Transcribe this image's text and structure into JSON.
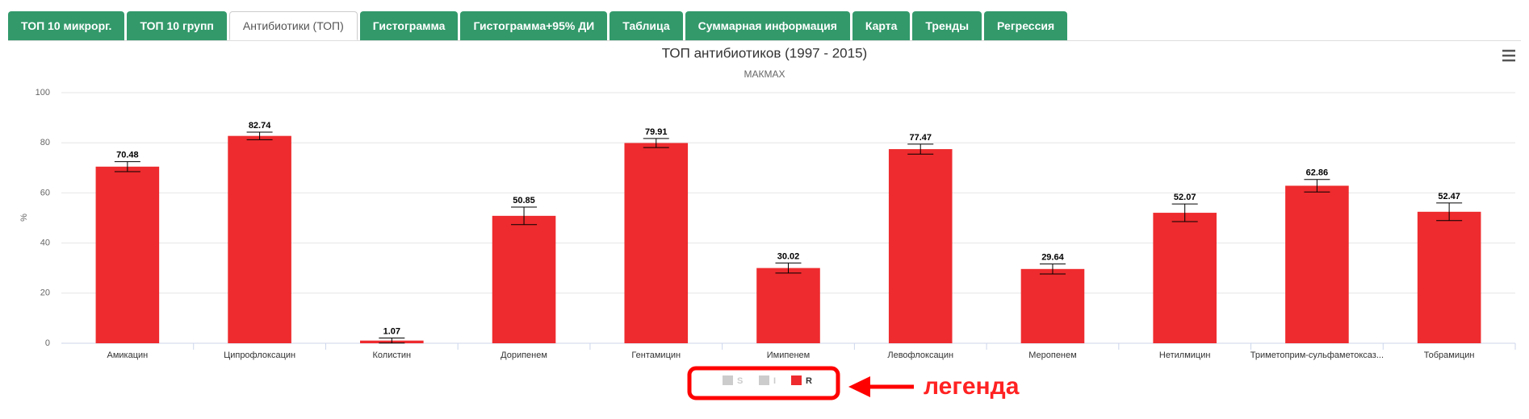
{
  "tabs": [
    "ТОП 10 микрорг.",
    "ТОП 10 групп",
    "Антибиотики (ТОП)",
    "Гистограмма",
    "Гистограмма+95% ДИ",
    "Таблица",
    "Суммарная информация",
    "Карта",
    "Тренды",
    "Регрессия"
  ],
  "active_tab": 2,
  "chart_data": {
    "type": "bar",
    "title": "ТОП антибиотиков (1997 - 2015)",
    "subtitle": "МАКМАХ",
    "y_label": "%",
    "categories": [
      "Амикацин",
      "Ципрофлоксацин",
      "Колистин",
      "Дорипенем",
      "Гентамицин",
      "Имипенем",
      "Левофлоксацин",
      "Меропенем",
      "Нетилмицин",
      "Триметоприм-сульфаметоксаз...",
      "Тобрамицин"
    ],
    "series": [
      {
        "name": "S",
        "color": "#cccccc",
        "visible": false
      },
      {
        "name": "I",
        "color": "#cccccc",
        "visible": false
      },
      {
        "name": "R",
        "color": "#ee2b2e",
        "visible": true,
        "values": [
          70.48,
          82.74,
          1.07,
          50.85,
          79.91,
          30.02,
          77.47,
          29.64,
          52.07,
          62.86,
          52.47
        ],
        "errors": [
          2,
          1.5,
          1,
          3.5,
          1.8,
          2,
          2,
          2,
          3.5,
          2.5,
          3.5
        ]
      }
    ],
    "ylim": [
      0,
      100
    ],
    "yticks": [
      0,
      20,
      40,
      60,
      80,
      100
    ],
    "grid": true,
    "legend": "bottom",
    "annotation": "легенда"
  }
}
